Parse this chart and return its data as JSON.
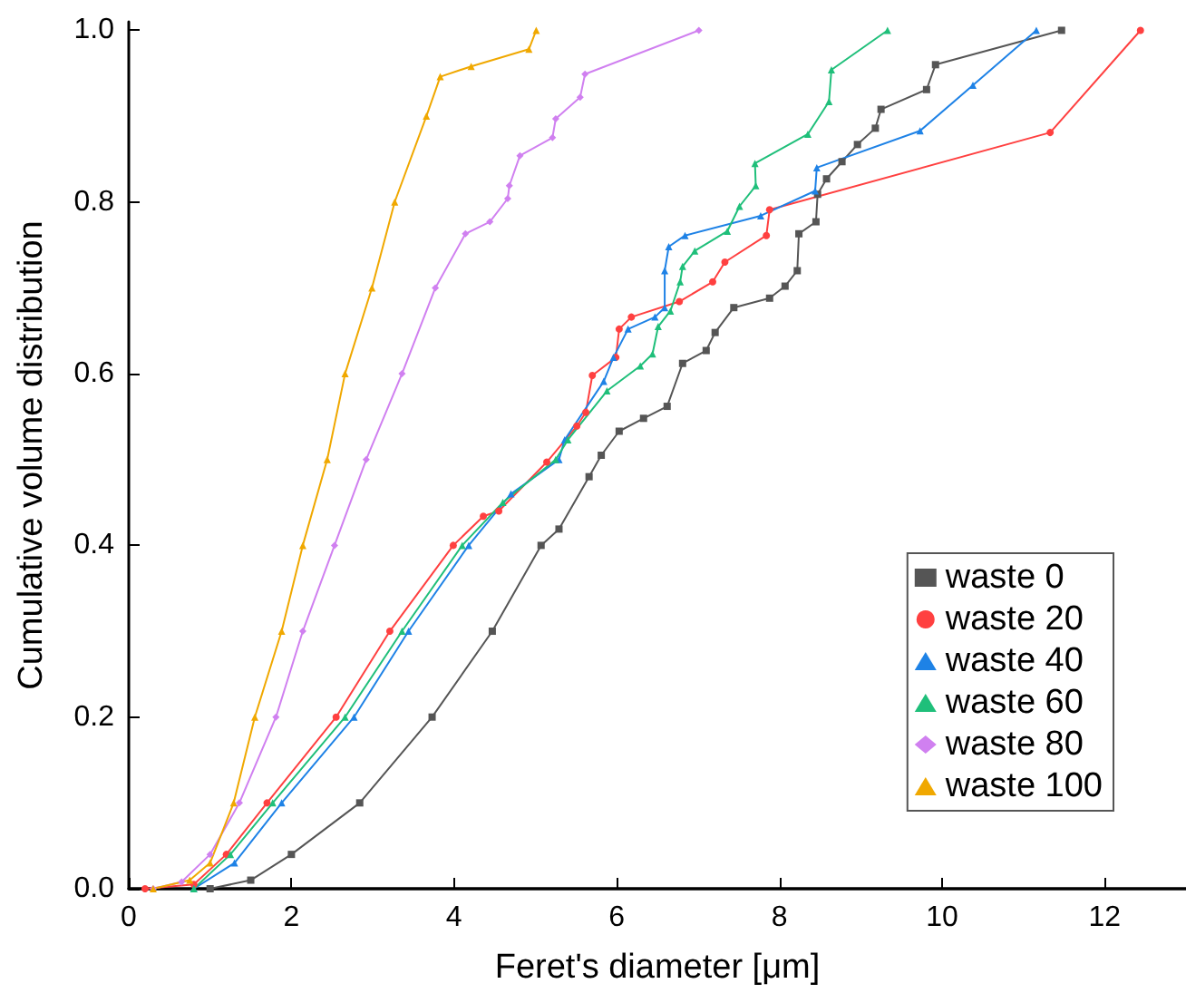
{
  "chart_data": {
    "type": "line",
    "xlabel": "Feret's diameter [μm]",
    "ylabel": "Cumulative volume distribution",
    "xlim": [
      0,
      13
    ],
    "xticks": [
      0,
      2,
      4,
      6,
      8,
      10,
      12
    ],
    "ylim": [
      0,
      1.01
    ],
    "yticks": [
      {
        "value": 0,
        "label": "0.0"
      },
      {
        "value": 0.2,
        "label": "0.2"
      },
      {
        "value": 0.4,
        "label": "0.4"
      },
      {
        "value": 0.6,
        "label": "0.6"
      },
      {
        "value": 0.8,
        "label": "0.8"
      },
      {
        "value": 1.0,
        "label": "1.0"
      }
    ],
    "grid": false,
    "legend": "bottom right",
    "series": [
      {
        "name": "waste 0",
        "color": "#555555",
        "marker": "square",
        "x": [
          1.0,
          1.5,
          2.0,
          2.84,
          3.73,
          4.47,
          5.07,
          5.29,
          5.66,
          5.81,
          6.03,
          6.33,
          6.62,
          6.81,
          7.1,
          7.21,
          7.44,
          7.88,
          8.07,
          8.22,
          8.24,
          8.45,
          8.47,
          8.58,
          8.77,
          8.96,
          9.18,
          9.25,
          9.81,
          9.92,
          11.47
        ],
        "values": [
          0,
          0.01,
          0.04,
          0.1,
          0.2,
          0.3,
          0.4,
          0.419,
          0.48,
          0.505,
          0.533,
          0.548,
          0.562,
          0.612,
          0.627,
          0.648,
          0.677,
          0.688,
          0.702,
          0.72,
          0.763,
          0.777,
          0.809,
          0.827,
          0.847,
          0.867,
          0.886,
          0.908,
          0.931,
          0.96,
          1.0
        ]
      },
      {
        "name": "waste 20",
        "color": "#ff4040",
        "marker": "circle",
        "x": [
          0.2,
          0.8,
          1.2,
          1.7,
          2.55,
          3.21,
          3.99,
          4.36,
          4.55,
          5.14,
          5.51,
          5.62,
          5.7,
          5.99,
          6.03,
          6.18,
          6.77,
          7.18,
          7.33,
          7.84,
          7.88,
          11.33,
          12.44
        ],
        "values": [
          0,
          0.005,
          0.04,
          0.1,
          0.2,
          0.3,
          0.4,
          0.434,
          0.44,
          0.497,
          0.539,
          0.555,
          0.598,
          0.619,
          0.652,
          0.666,
          0.684,
          0.707,
          0.73,
          0.761,
          0.791,
          0.881,
          1.0
        ]
      },
      {
        "name": "waste 40",
        "color": "#1e82e6",
        "marker": "triangle",
        "x": [
          0.8,
          1.3,
          1.88,
          2.77,
          3.44,
          4.18,
          4.7,
          5.29,
          5.36,
          5.84,
          5.96,
          6.14,
          6.47,
          6.59,
          6.59,
          6.64,
          6.84,
          7.77,
          8.44,
          8.46,
          9.73,
          10.38,
          11.16
        ],
        "values": [
          0,
          0.03,
          0.1,
          0.2,
          0.3,
          0.4,
          0.46,
          0.5,
          0.523,
          0.591,
          0.619,
          0.652,
          0.666,
          0.677,
          0.72,
          0.748,
          0.761,
          0.784,
          0.813,
          0.84,
          0.883,
          0.936,
          1.0
        ]
      },
      {
        "name": "waste 60",
        "color": "#1fbf7a",
        "marker": "triangle",
        "x": [
          0.8,
          1.25,
          1.77,
          2.66,
          3.36,
          4.1,
          4.6,
          5.25,
          5.4,
          5.88,
          6.29,
          6.44,
          6.51,
          6.66,
          6.78,
          6.81,
          6.96,
          7.36,
          7.51,
          7.71,
          7.7,
          8.35,
          8.61,
          8.64,
          9.33
        ],
        "values": [
          0,
          0.04,
          0.1,
          0.2,
          0.3,
          0.4,
          0.45,
          0.5,
          0.523,
          0.58,
          0.609,
          0.623,
          0.655,
          0.673,
          0.707,
          0.725,
          0.743,
          0.766,
          0.795,
          0.819,
          0.845,
          0.879,
          0.917,
          0.954,
          1.0
        ]
      },
      {
        "name": "waste 80",
        "color": "#d080f0",
        "marker": "diamond",
        "x": [
          0.3,
          0.65,
          1.0,
          1.36,
          1.81,
          2.14,
          2.53,
          2.92,
          3.36,
          3.77,
          4.14,
          4.44,
          4.66,
          4.68,
          4.81,
          5.21,
          5.25,
          5.55,
          5.61,
          7.01
        ],
        "values": [
          0,
          0.008,
          0.04,
          0.1,
          0.2,
          0.3,
          0.4,
          0.5,
          0.6,
          0.7,
          0.763,
          0.777,
          0.804,
          0.819,
          0.854,
          0.875,
          0.897,
          0.922,
          0.949,
          1.0
        ]
      },
      {
        "name": "waste 100",
        "color": "#f0a800",
        "marker": "triangle",
        "x": [
          0.3,
          0.75,
          1.0,
          1.29,
          1.55,
          1.88,
          2.14,
          2.44,
          2.66,
          2.99,
          3.27,
          3.66,
          3.83,
          4.21,
          4.92,
          5.01
        ],
        "values": [
          0,
          0.01,
          0.03,
          0.1,
          0.2,
          0.3,
          0.4,
          0.5,
          0.6,
          0.7,
          0.8,
          0.9,
          0.946,
          0.958,
          0.978,
          1.0
        ]
      }
    ]
  }
}
